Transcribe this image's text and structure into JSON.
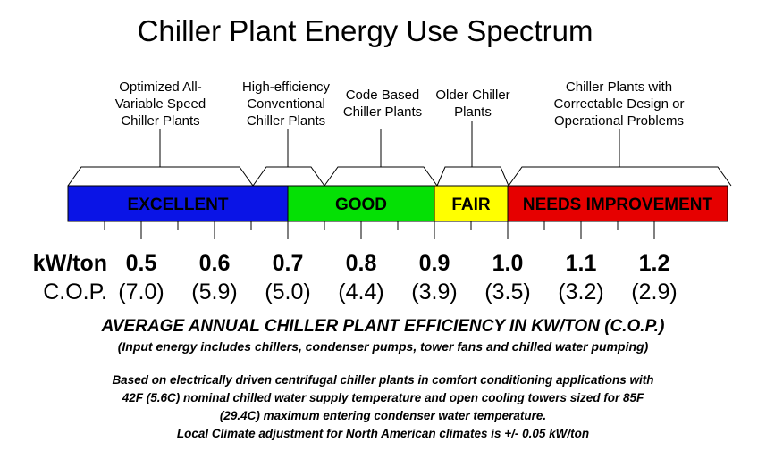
{
  "title": "Chiller Plant Energy Use Spectrum",
  "categories": [
    {
      "id": "optimized",
      "lines": [
        "Optimized All-",
        "Variable Speed",
        "Chiller Plants"
      ]
    },
    {
      "id": "high-efficiency",
      "lines": [
        "High-efficiency",
        "Conventional",
        "Chiller Plants"
      ]
    },
    {
      "id": "code-based",
      "lines": [
        "Code Based",
        "Chiller Plants"
      ]
    },
    {
      "id": "older",
      "lines": [
        "Older Chiller",
        "Plants"
      ]
    },
    {
      "id": "correctable",
      "lines": [
        "Chiller Plants with",
        "Correctable Design or",
        "Operational Problems"
      ]
    }
  ],
  "bands": [
    {
      "label": "EXCELLENT",
      "color": "#0a14e6",
      "text_color": "#000000",
      "from": 0.4,
      "to": 0.7
    },
    {
      "label": "GOOD",
      "color": "#05e005",
      "text_color": "#000000",
      "from": 0.7,
      "to": 0.9
    },
    {
      "label": "FAIR",
      "color": "#ffff00",
      "text_color": "#000000",
      "from": 0.9,
      "to": 1.0
    },
    {
      "label": "NEEDS IMPROVEMENT",
      "color": "#e60000",
      "text_color": "#000000",
      "from": 1.0,
      "to": 1.3
    }
  ],
  "scale": {
    "kw_label": "kW/ton",
    "cop_label": "C.O.P.",
    "kw_values": [
      "0.5",
      "0.6",
      "0.7",
      "0.8",
      "0.9",
      "1.0",
      "1.1",
      "1.2"
    ],
    "cop_values": [
      "(7.0)",
      "(5.9)",
      "(5.0)",
      "(4.4)",
      "(3.9)",
      "(3.5)",
      "(3.2)",
      "(2.9)"
    ]
  },
  "notes": {
    "heading": "AVERAGE ANNUAL CHILLER PLANT EFFICIENCY IN KW/TON (C.O.P.)",
    "sub": "(Input energy includes chillers, condenser pumps, tower fans and chilled water pumping)",
    "basis": [
      "Based on electrically driven centrifugal chiller plants in comfort conditioning applications with",
      "42F (5.6C) nominal chilled water supply temperature and open cooling towers sized for 85F",
      "(29.4C) maximum entering condenser water temperature.",
      "Local Climate adjustment for North American climates is +/- 0.05 kW/ton"
    ]
  }
}
